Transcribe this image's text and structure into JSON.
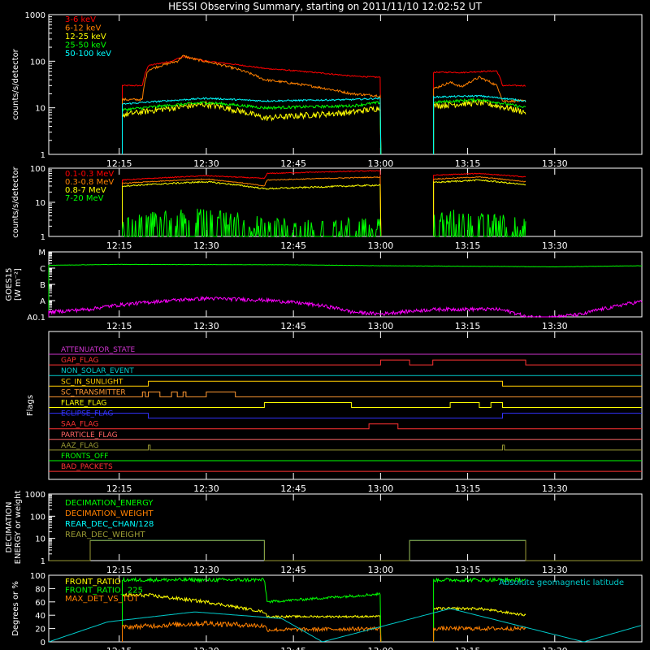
{
  "title": "HESSI Observing Summary, starting on 2011/11/10 12:02:52 UT",
  "time_axis": {
    "start": "12:02:52",
    "end": "13:45",
    "ticks": [
      "12:15",
      "12:30",
      "12:45",
      "13:00",
      "13:15",
      "13:30"
    ]
  },
  "chart_data": [
    {
      "type": "line",
      "id": "lowE",
      "ylabel": "counts/s/detector",
      "yscale": "log",
      "ylim": [
        1,
        1000
      ],
      "yticks": [
        "1",
        "10",
        "100",
        "1000"
      ],
      "series": [
        {
          "name": "3-6 keV",
          "color": "#ff0000",
          "kind": "noisy",
          "noise": 0.03,
          "x": [
            "12:02:52",
            "12:15",
            "12:15:30",
            "12:19",
            "12:20",
            "12:24",
            "12:26",
            "12:30",
            "12:40",
            "12:55",
            "13:00",
            "13:05",
            "13:09",
            "13:12",
            "13:14",
            "13:17",
            "13:20",
            "13:21",
            "13:25"
          ],
          "y": [
            null,
            null,
            30,
            30,
            80,
            100,
            125,
            100,
            70,
            48,
            45,
            null,
            58,
            58,
            57,
            60,
            62,
            30,
            30
          ]
        },
        {
          "name": "6-12 keV",
          "color": "#ff8000",
          "kind": "noisy",
          "noise": 0.06,
          "x": [
            "12:02:52",
            "12:15",
            "12:15:30",
            "12:19",
            "12:20",
            "12:25",
            "12:26",
            "12:28",
            "12:40",
            "12:55",
            "13:00",
            "13:05",
            "13:09",
            "13:12",
            "13:14",
            "13:17",
            "13:20",
            "13:21",
            "13:25"
          ],
          "y": [
            null,
            null,
            15,
            15,
            65,
            100,
            130,
            110,
            40,
            20,
            18,
            null,
            25,
            35,
            28,
            45,
            30,
            14,
            14
          ]
        },
        {
          "name": "12-25 keV",
          "color": "#ffff00",
          "kind": "noisy",
          "noise": 0.15,
          "x": [
            "12:02:52",
            "12:15",
            "12:15:30",
            "12:30",
            "12:40",
            "12:55",
            "13:00",
            "13:05",
            "13:09",
            "13:17",
            "13:25"
          ],
          "y": [
            null,
            null,
            7,
            12,
            6,
            8,
            10,
            null,
            11,
            13,
            8
          ]
        },
        {
          "name": "25-50 keV",
          "color": "#00ff00",
          "kind": "noisy",
          "noise": 0.07,
          "x": [
            "12:02:52",
            "12:15",
            "12:15:30",
            "12:30",
            "12:40",
            "12:55",
            "13:00",
            "13:05",
            "13:09",
            "13:17",
            "13:25"
          ],
          "y": [
            null,
            null,
            9,
            13,
            10,
            11,
            13,
            null,
            13,
            15,
            10
          ]
        },
        {
          "name": "50-100 keV",
          "color": "#00ffff",
          "kind": "noisy",
          "noise": 0.04,
          "x": [
            "12:02:52",
            "12:15",
            "12:15:30",
            "12:30",
            "12:40",
            "12:55",
            "13:00",
            "13:05",
            "13:09",
            "13:17",
            "13:25"
          ],
          "y": [
            null,
            null,
            12,
            16,
            14,
            15,
            16,
            null,
            17,
            18,
            14
          ]
        }
      ]
    },
    {
      "type": "line",
      "id": "highE",
      "ylabel": "counts/s/detector",
      "yscale": "log",
      "ylim": [
        1,
        100
      ],
      "yticks": [
        "1",
        "10",
        "100"
      ],
      "series": [
        {
          "name": "0.1-0.3 MeV",
          "color": "#ff0000",
          "kind": "noisy",
          "noise": 0.03,
          "x": [
            "12:02:52",
            "12:15",
            "12:15:30",
            "12:30",
            "12:40",
            "12:40:30",
            "13:00",
            "13:05",
            "13:09",
            "13:17",
            "13:25"
          ],
          "y": [
            null,
            null,
            45,
            60,
            50,
            70,
            85,
            null,
            62,
            70,
            55
          ]
        },
        {
          "name": "0.3-0.8 MeV",
          "color": "#ff8000",
          "kind": "noisy",
          "noise": 0.03,
          "x": [
            "12:02:52",
            "12:15",
            "12:15:30",
            "12:30",
            "12:40",
            "12:40:30",
            "13:00",
            "13:05",
            "13:09",
            "13:17",
            "13:25"
          ],
          "y": [
            null,
            null,
            36,
            48,
            30,
            45,
            55,
            null,
            48,
            55,
            40
          ]
        },
        {
          "name": "0.8-7 MeV",
          "color": "#ffff00",
          "kind": "noisy",
          "noise": 0.05,
          "x": [
            "12:02:52",
            "12:15",
            "12:15:30",
            "12:30",
            "12:40",
            "12:40:30",
            "13:00",
            "13:05",
            "13:09",
            "13:17",
            "13:25"
          ],
          "y": [
            null,
            null,
            30,
            40,
            25,
            25,
            32,
            null,
            38,
            45,
            32
          ]
        },
        {
          "name": "7-20 MeV",
          "color": "#00ff00",
          "kind": "spiky",
          "x": [
            "12:02:52",
            "12:15",
            "12:15:30",
            "12:20",
            "12:30",
            "12:40",
            "13:00",
            "13:05",
            "13:09",
            "13:25"
          ],
          "y": [
            null,
            null,
            1,
            1.5,
            2,
            1,
            1,
            null,
            2,
            1
          ]
        }
      ]
    },
    {
      "type": "line",
      "id": "goes",
      "ylabel": "GOES15",
      "ylabel2": "[W m⁻²]",
      "yscale": "log",
      "ylim": [
        1,
        10000
      ],
      "yticks": [
        "A0.1",
        "A",
        "B",
        "C",
        "M"
      ],
      "series": [
        {
          "name": "",
          "color": "#00ff00",
          "kind": "noisy",
          "noise": 0.02,
          "x": [
            "12:02:52",
            "12:15",
            "12:45",
            "13:00",
            "13:30",
            "13:45"
          ],
          "y": [
            1500,
            1700,
            1600,
            1400,
            1200,
            1400
          ]
        },
        {
          "name": "",
          "color": "#ff00ff",
          "kind": "noisy",
          "noise": 0.25,
          "x": [
            "12:02:52",
            "12:10",
            "12:20",
            "12:30",
            "12:40",
            "12:48",
            "12:55",
            "13:00",
            "13:10",
            "13:20",
            "13:25",
            "13:30",
            "13:35",
            "13:40",
            "13:45"
          ],
          "y": [
            2,
            3,
            8,
            14,
            11,
            6,
            2,
            1.5,
            3,
            3,
            1,
            1,
            1.5,
            4,
            9
          ]
        }
      ]
    },
    {
      "type": "line",
      "id": "flags",
      "ylabel": "Flags",
      "series": [
        {
          "name": "ATTENUATOR_STATE",
          "color": "#cc33cc",
          "states": [
            [
              "12:02:52",
              0
            ]
          ]
        },
        {
          "name": "GAP_FLAG",
          "color": "#ff3333",
          "states": [
            [
              "12:02:52",
              0
            ],
            [
              "13:00",
              1
            ],
            [
              "13:05",
              0
            ],
            [
              "13:09",
              1
            ],
            [
              "13:25",
              0
            ]
          ]
        },
        {
          "name": "NON_SOLAR_EVENT",
          "color": "#00cccc",
          "states": [
            [
              "12:02:52",
              0
            ]
          ]
        },
        {
          "name": "SC_IN_SUNLIGHT",
          "color": "#ffcc00",
          "states": [
            [
              "12:02:52",
              0
            ],
            [
              "12:20",
              1
            ],
            [
              "13:21",
              0
            ]
          ]
        },
        {
          "name": "SC_TRANSMITTER",
          "color": "#ff9933",
          "states": [
            [
              "12:02:52",
              0
            ],
            [
              "12:19",
              1
            ],
            [
              "12:19:30",
              0
            ],
            [
              "12:20",
              1
            ],
            [
              "12:22",
              0
            ],
            [
              "12:24",
              1
            ],
            [
              "12:25",
              0
            ],
            [
              "12:26",
              1
            ],
            [
              "12:26:30",
              0
            ],
            [
              "12:30",
              1
            ],
            [
              "12:35",
              0
            ]
          ]
        },
        {
          "name": "FLARE_FLAG",
          "color": "#ffff00",
          "states": [
            [
              "12:02:52",
              0
            ],
            [
              "12:40",
              1
            ],
            [
              "12:55",
              0
            ],
            [
              "13:12",
              1
            ],
            [
              "13:17",
              0
            ],
            [
              "13:19",
              1
            ],
            [
              "13:21",
              0
            ]
          ]
        },
        {
          "name": "ECLIPSE_FLAG",
          "color": "#3333ff",
          "states": [
            [
              "12:02:52",
              1
            ],
            [
              "12:20",
              0
            ],
            [
              "13:21",
              1
            ]
          ]
        },
        {
          "name": "SAA_FLAG",
          "color": "#ff3333",
          "states": [
            [
              "12:02:52",
              0
            ],
            [
              "12:58",
              1
            ],
            [
              "13:03",
              0
            ]
          ]
        },
        {
          "name": "PARTICLE_FLAG",
          "color": "#ff6666",
          "states": [
            [
              "12:02:52",
              0
            ]
          ]
        },
        {
          "name": "AAZ_FLAG",
          "color": "#999933",
          "states": [
            [
              "12:02:52",
              0
            ],
            [
              "12:20",
              1
            ],
            [
              "12:20:20",
              0
            ],
            [
              "13:21",
              1
            ],
            [
              "13:21:20",
              0
            ]
          ]
        },
        {
          "name": "FRONTS_OFF",
          "color": "#00ff00",
          "states": [
            [
              "12:02:52",
              0
            ]
          ]
        },
        {
          "name": "BAD_PACKETS",
          "color": "#ff3333",
          "states": [
            [
              "12:02:52",
              0
            ]
          ]
        }
      ]
    },
    {
      "type": "line",
      "id": "decim",
      "ylabel": "DECIMATION",
      "ylabel2": "ENERGY or weight",
      "yscale": "log",
      "ylim": [
        1,
        1000
      ],
      "yticks": [
        "1",
        "10",
        "100",
        "1000"
      ],
      "series": [
        {
          "name": "DECIMATION_ENERGY",
          "color": "#00ff00",
          "states": []
        },
        {
          "name": "DECIMATION_WEIGHT",
          "color": "#ff8000",
          "states": []
        },
        {
          "name": "REAR_DEC_CHAN/128",
          "color": "#00ffff",
          "states": [
            [
              "12:02:52",
              1
            ],
            [
              "12:10",
              8
            ],
            [
              "12:40",
              1
            ],
            [
              "13:05",
              8
            ],
            [
              "13:25",
              1
            ]
          ]
        },
        {
          "name": "REAR_DEC_WEIGHT",
          "color": "#999933",
          "states": [
            [
              "12:02:52",
              1
            ],
            [
              "12:10",
              8
            ],
            [
              "12:40",
              1
            ],
            [
              "13:05",
              8
            ],
            [
              "13:25",
              1
            ]
          ]
        }
      ]
    },
    {
      "type": "line",
      "id": "ratio",
      "ylabel": "Degrees or %",
      "yscale": "linear",
      "ylim": [
        0,
        100
      ],
      "yticks": [
        "0",
        "20",
        "40",
        "60",
        "80",
        "100"
      ],
      "annotation": "Absolute geomagnetic latitude",
      "series": [
        {
          "name": "FRONT_RATIO",
          "color": "#ffff00",
          "kind": "noisy",
          "noise": 0.04,
          "x": [
            "12:02:52",
            "12:15",
            "12:15:30",
            "12:20",
            "12:30",
            "12:40",
            "12:40:30",
            "13:00",
            "13:05",
            "13:09",
            "13:17",
            "13:25"
          ],
          "y": [
            null,
            null,
            70,
            70,
            60,
            45,
            38,
            38,
            null,
            50,
            50,
            40
          ]
        },
        {
          "name": "FRONT_RATIO_ 225",
          "color": "#00ff00",
          "kind": "noisy",
          "noise": 0.03,
          "x": [
            "12:02:52",
            "12:15",
            "12:15:30",
            "12:40",
            "12:40:30",
            "13:00",
            "13:05",
            "13:09",
            "13:25"
          ],
          "y": [
            null,
            null,
            93,
            93,
            60,
            72,
            null,
            93,
            93
          ]
        },
        {
          "name": "MAX_DET_VS_TOT",
          "color": "#ff8000",
          "kind": "noisy",
          "noise": 0.15,
          "x": [
            "12:02:52",
            "12:15",
            "12:15:30",
            "12:30",
            "12:40",
            "12:40:30",
            "13:00",
            "13:05",
            "13:09",
            "13:25"
          ],
          "y": [
            null,
            null,
            22,
            28,
            24,
            18,
            20,
            null,
            20,
            20
          ]
        },
        {
          "name": "",
          "color": "#00cccc",
          "kind": "smooth",
          "x": [
            "12:02:52",
            "12:13",
            "12:28",
            "12:43",
            "12:50",
            "13:12",
            "13:35",
            "13:45"
          ],
          "y": [
            0,
            30,
            45,
            35,
            0,
            50,
            0,
            25
          ]
        }
      ]
    }
  ]
}
